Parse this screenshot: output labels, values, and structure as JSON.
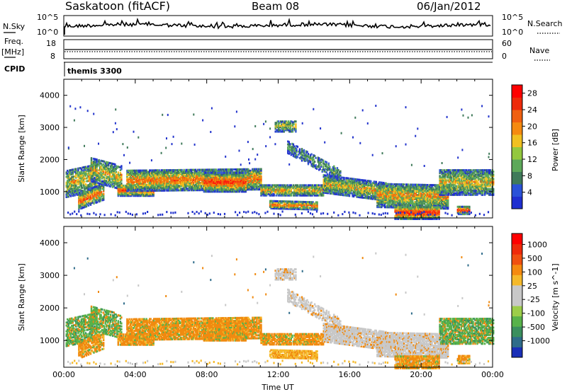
{
  "header": {
    "station": "Saskatoon (fitACF)",
    "beam": "Beam 08",
    "date": "06/Jan/2012"
  },
  "strips": {
    "nsky_label": "N.Sky",
    "nsky_ticks": [
      "10^5",
      "10^0"
    ],
    "nsearch_label": "N.Search",
    "freq_label_line1": "Freq.",
    "freq_label_line2": "[MHz]",
    "freq_ticks": [
      "18",
      "8"
    ],
    "nave_label": "Nave",
    "nave_ticks": [
      "60",
      "0"
    ],
    "cpid_label": "CPID",
    "cpid_value": "themis 3300"
  },
  "colors": {
    "power_scale": [
      "#1f2fd0",
      "#2a52d8",
      "#3f7a5a",
      "#5da85a",
      "#93c83e",
      "#f0c020",
      "#f58a10",
      "#f06010",
      "#ee2a0a",
      "#ff0000"
    ],
    "velocity_scale": [
      "#1a2fb8",
      "#2f6c8a",
      "#3b8f5e",
      "#58b24a",
      "#9ccd49",
      "#c8c8c8",
      "#c8c8c8",
      "#f5b92a",
      "#f58a10",
      "#f05010",
      "#ef2a0a",
      "#ff0000"
    ]
  },
  "chart_data": [
    {
      "type": "heatmap",
      "name": "power",
      "title": "",
      "xlabel": "Time UT",
      "ylabel": "Slant Range [km]",
      "xlim": [
        "00:00",
        "24:00"
      ],
      "ylim": [
        180,
        4500
      ],
      "x_ticks": [
        "00:00",
        "04:00",
        "08:00",
        "12:00",
        "16:00",
        "20:00",
        "00:00"
      ],
      "y_ticks": [
        1000,
        2000,
        3000,
        4000
      ],
      "colorbar_label": "Power [dB]",
      "colorbar_ticks": [
        "4",
        "8",
        "12",
        "16",
        "20",
        "24",
        "28"
      ],
      "colorbar_range": [
        0,
        30
      ]
    },
    {
      "type": "heatmap",
      "name": "velocity",
      "title": "",
      "xlabel": "Time UT",
      "ylabel": "Slant Range [km]",
      "xlim": [
        "00:00",
        "24:00"
      ],
      "ylim": [
        180,
        4500
      ],
      "x_ticks": [
        "00:00",
        "04:00",
        "08:00",
        "12:00",
        "16:00",
        "20:00",
        "00:00"
      ],
      "y_ticks": [
        1000,
        2000,
        3000,
        4000
      ],
      "colorbar_label": "Velocity [m s^-1]",
      "colorbar_ticks": [
        "1000",
        "500",
        "100",
        "25",
        "-25",
        "-100",
        "-500",
        "-1000"
      ]
    }
  ]
}
